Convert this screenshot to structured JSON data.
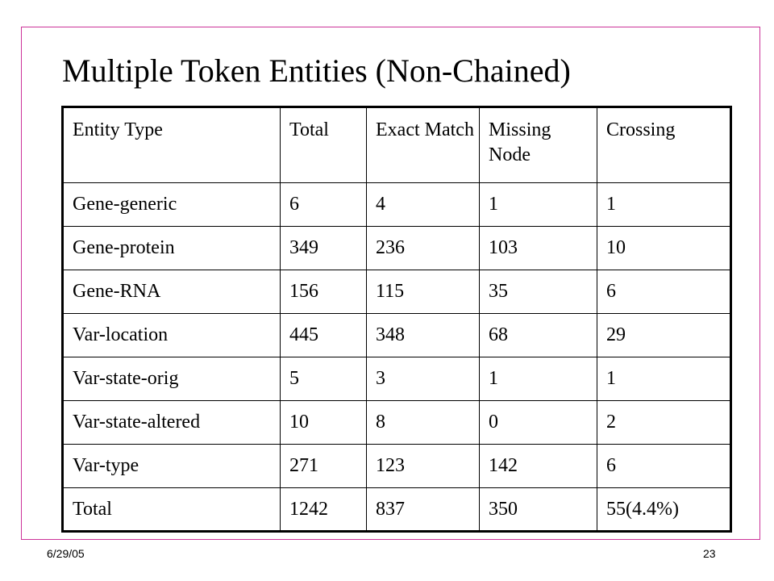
{
  "slide": {
    "title": "Multiple Token Entities (Non-Chained)",
    "footer_date": "6/29/05",
    "footer_page": "23",
    "frame_color": "#cc3399"
  },
  "table": {
    "headers": [
      "Entity Type",
      "Total",
      "Exact Match",
      "Missing Node",
      "Crossing"
    ],
    "rows": [
      [
        "Gene-generic",
        "6",
        "4",
        "1",
        "1"
      ],
      [
        "Gene-protein",
        "349",
        "236",
        "103",
        "10"
      ],
      [
        "Gene-RNA",
        "156",
        "115",
        "35",
        "6"
      ],
      [
        "Var-location",
        "445",
        "348",
        "68",
        "29"
      ],
      [
        "Var-state-orig",
        "5",
        "3",
        "1",
        "1"
      ],
      [
        "Var-state-altered",
        "10",
        "8",
        "0",
        "2"
      ],
      [
        "Var-type",
        "271",
        "123",
        "142",
        "6"
      ],
      [
        "Total",
        "1242",
        "837",
        "350",
        "55(4.4%)"
      ]
    ]
  }
}
